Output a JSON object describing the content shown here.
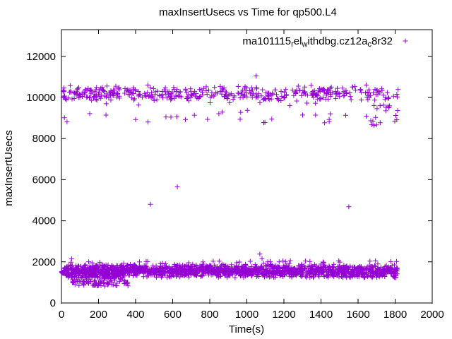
{
  "window": {
    "background": "#ffffff",
    "border_color": "#000000"
  },
  "chart_data": {
    "type": "scatter",
    "title": "maxInsertUsecs vs Time for qp500.L4",
    "xlabel": "Time(s)",
    "ylabel": "maxInsertUsecs",
    "xlim": [
      0,
      2000
    ],
    "ylim": [
      0,
      13300
    ],
    "xticks": [
      0,
      200,
      400,
      600,
      800,
      1000,
      1200,
      1400,
      1600,
      1800,
      2000
    ],
    "yticks": [
      0,
      2000,
      4000,
      6000,
      8000,
      10000,
      12000
    ],
    "grid": false,
    "legend_position": "top-right-inside",
    "marker_color": "#9400D3",
    "series": [
      {
        "name": "ma101115_rel_withdbg.cz12a_c8r32",
        "label_segments": [
          {
            "text": "ma101115"
          },
          {
            "text": "r",
            "sub": true
          },
          {
            "text": "el"
          },
          {
            "text": "w",
            "sub": true
          },
          {
            "text": "ithdbg.cz12a"
          },
          {
            "text": "c",
            "sub": true
          },
          {
            "text": "8r32"
          }
        ],
        "marker": "plus",
        "color": "#9400D3",
        "point_generation": {
          "seed": 1337,
          "bands": [
            {
              "name": "lower-band-core",
              "t": [
                0,
                1812
              ],
              "count": 1500,
              "dist": "bell",
              "center": 1600,
              "half": 300
            },
            {
              "name": "lower-band-fringe",
              "t": [
                0,
                1812
              ],
              "count": 330,
              "dist": "uniform",
              "min": 1230,
              "max": 1520
            },
            {
              "name": "lower-band-dip",
              "t": [
                55,
                360
              ],
              "count": 110,
              "dist": "uniform",
              "min": 820,
              "max": 1320
            },
            {
              "name": "lower-band-high",
              "t": [
                0,
                1812
              ],
              "count": 55,
              "dist": "uniform",
              "min": 1840,
              "max": 2060
            },
            {
              "name": "upper-band-core",
              "t": [
                0,
                1818
              ],
              "count": 430,
              "dist": "bell",
              "center": 10200,
              "half": 430
            },
            {
              "name": "upper-band-low",
              "t": [
                0,
                1818
              ],
              "count": 42,
              "dist": "uniform",
              "min": 8750,
              "max": 9750
            },
            {
              "name": "upper-band-dip",
              "t": [
                1630,
                1700
              ],
              "count": 7,
              "dist": "uniform",
              "min": 8050,
              "max": 9100
            },
            {
              "name": "upper-band-right-dip",
              "t": [
                1760,
                1815
              ],
              "count": 5,
              "dist": "uniform",
              "min": 8800,
              "max": 9700
            }
          ]
        },
        "outlier_points": [
          [
            480,
            4800
          ],
          [
            625,
            5650
          ],
          [
            1050,
            11050
          ],
          [
            1550,
            4680
          ],
          [
            1070,
            2380
          ],
          [
            1082,
            2160
          ],
          [
            55,
            2150
          ],
          [
            30,
            8810
          ],
          [
            1798,
            8850
          ]
        ]
      }
    ]
  }
}
